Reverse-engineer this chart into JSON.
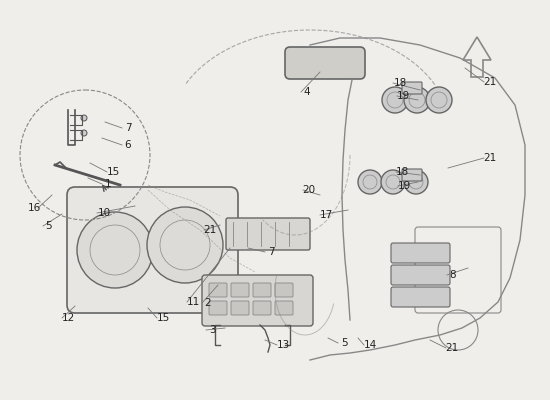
{
  "bg_color": "#f0eeeb",
  "line_color": "#888888",
  "dark_line": "#555555",
  "part_line": "#666666",
  "label_color": "#222222",
  "arrow_color": "#999999",
  "figsize": [
    5.5,
    4.0
  ],
  "dpi": 100,
  "part_labels": [
    [
      128,
      128,
      "7"
    ],
    [
      128,
      145,
      "6"
    ],
    [
      113,
      172,
      "15"
    ],
    [
      108,
      184,
      "1"
    ],
    [
      49,
      226,
      "5"
    ],
    [
      34,
      208,
      "16"
    ],
    [
      104,
      213,
      "10"
    ],
    [
      68,
      318,
      "12"
    ],
    [
      163,
      318,
      "15"
    ],
    [
      208,
      303,
      "2"
    ],
    [
      212,
      330,
      "3"
    ],
    [
      271,
      252,
      "7"
    ],
    [
      210,
      230,
      "21"
    ],
    [
      307,
      92,
      "4"
    ],
    [
      400,
      83,
      "18"
    ],
    [
      403,
      96,
      "19"
    ],
    [
      402,
      172,
      "18"
    ],
    [
      404,
      186,
      "19"
    ],
    [
      309,
      190,
      "20"
    ],
    [
      326,
      215,
      "17"
    ],
    [
      453,
      275,
      "8"
    ],
    [
      283,
      345,
      "13"
    ],
    [
      344,
      343,
      "5"
    ],
    [
      370,
      345,
      "14"
    ],
    [
      452,
      348,
      "21"
    ],
    [
      490,
      158,
      "21"
    ],
    [
      490,
      82,
      "21"
    ],
    [
      193,
      302,
      "11"
    ]
  ],
  "leader_lines": [
    [
      122,
      128,
      105,
      122
    ],
    [
      122,
      145,
      102,
      138
    ],
    [
      107,
      172,
      90,
      163
    ],
    [
      102,
      184,
      88,
      178
    ],
    [
      43,
      226,
      62,
      214
    ],
    [
      38,
      208,
      52,
      195
    ],
    [
      97,
      213,
      135,
      206
    ],
    [
      62,
      318,
      75,
      306
    ],
    [
      157,
      318,
      148,
      308
    ],
    [
      202,
      303,
      218,
      285
    ],
    [
      206,
      330,
      225,
      328
    ],
    [
      265,
      252,
      248,
      248
    ],
    [
      204,
      230,
      220,
      225
    ],
    [
      301,
      92,
      320,
      72
    ],
    [
      393,
      83,
      420,
      90
    ],
    [
      397,
      96,
      418,
      100
    ],
    [
      396,
      172,
      420,
      175
    ],
    [
      398,
      186,
      418,
      182
    ],
    [
      303,
      190,
      320,
      195
    ],
    [
      320,
      215,
      348,
      210
    ],
    [
      447,
      275,
      468,
      268
    ],
    [
      277,
      345,
      265,
      340
    ],
    [
      338,
      343,
      328,
      338
    ],
    [
      364,
      345,
      358,
      338
    ],
    [
      446,
      348,
      430,
      340
    ],
    [
      484,
      158,
      448,
      168
    ],
    [
      484,
      82,
      465,
      68
    ],
    [
      187,
      302,
      230,
      248
    ]
  ]
}
